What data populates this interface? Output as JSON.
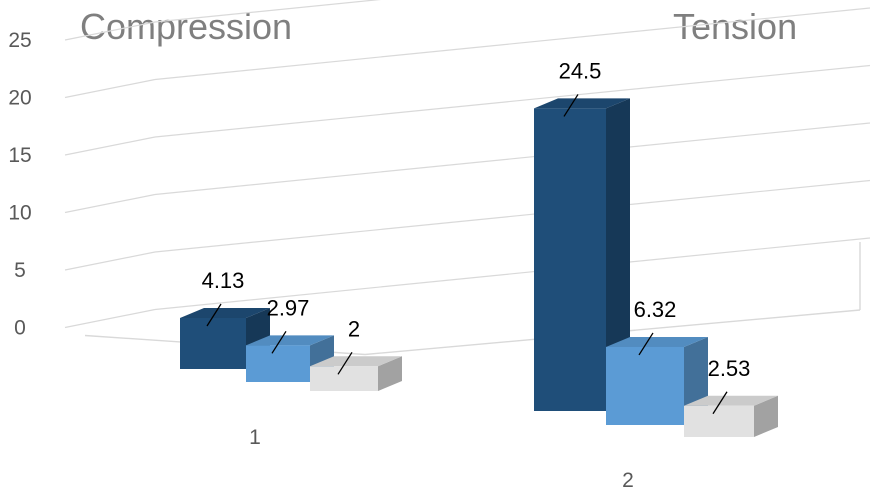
{
  "chart_data": {
    "type": "bar",
    "subtype": "3d-clustered-column",
    "headings": [
      "Compression",
      "Tension"
    ],
    "categories": [
      "1",
      "2"
    ],
    "series": [
      {
        "values": [
          4.13,
          24.5
        ],
        "color": "#1f4e79"
      },
      {
        "values": [
          2.97,
          6.32
        ],
        "color": "#5b9bd5"
      },
      {
        "values": [
          2,
          2.53
        ],
        "color": "#e1e1e1"
      }
    ],
    "data_labels": [
      [
        "4.13",
        "24.5"
      ],
      [
        "2.97",
        "6.32"
      ],
      [
        "2",
        "2.53"
      ]
    ],
    "yticks": [
      "0",
      "5",
      "10",
      "15",
      "20",
      "25"
    ],
    "ylim": [
      0,
      25
    ],
    "grid": true,
    "legend": "none",
    "xlabel": "",
    "ylabel": ""
  }
}
